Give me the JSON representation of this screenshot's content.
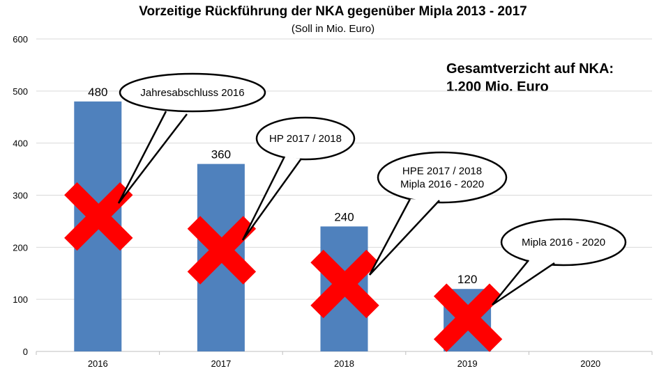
{
  "chart_data": {
    "type": "bar",
    "title": "Vorzeitige Rückführung der NKA gegenüber Mipla 2013 - 2017",
    "subtitle": "(Soll in Mio. Euro)",
    "categories": [
      "2016",
      "2017",
      "2018",
      "2019",
      "2020"
    ],
    "values": [
      480,
      360,
      240,
      120,
      null
    ],
    "data_labels": [
      "480",
      "360",
      "240",
      "120",
      ""
    ],
    "y_ticks": [
      "0",
      "100",
      "200",
      "300",
      "400",
      "500",
      "600"
    ],
    "ylim": [
      0,
      600
    ],
    "grid": true,
    "bar_color": "#4f81bd",
    "marker_color": "#ff0000",
    "crossed_out": [
      true,
      true,
      true,
      true,
      false
    ],
    "annotation": {
      "line1": "Gesamtverzicht auf NKA:",
      "line2": "1.200 Mio. Euro"
    },
    "callouts": [
      {
        "category": "2016",
        "lines": [
          "Jahresabschluss 2016"
        ]
      },
      {
        "category": "2017",
        "lines": [
          "HP 2017 / 2018"
        ]
      },
      {
        "category": "2018",
        "lines": [
          "HPE 2017 / 2018",
          "Mipla 2016 - 2020"
        ]
      },
      {
        "category": "2019",
        "lines": [
          "Mipla 2016 - 2020"
        ]
      }
    ]
  }
}
